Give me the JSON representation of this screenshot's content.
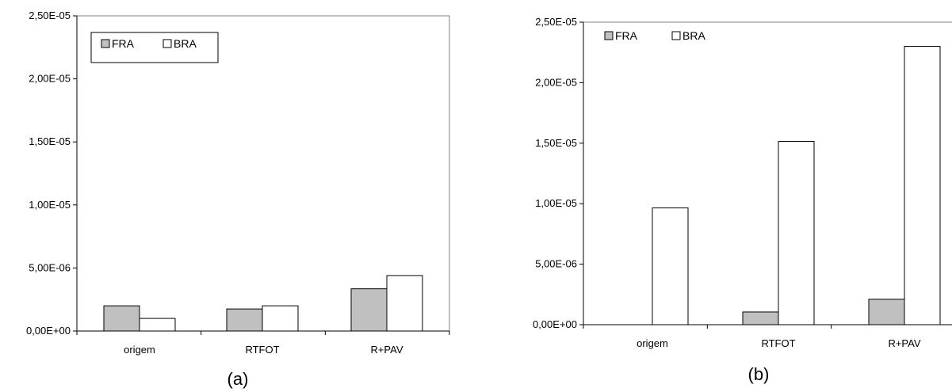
{
  "chart_data": [
    {
      "type": "bar",
      "caption": "(a)",
      "categories": [
        "origem",
        "RTFOT",
        "R+PAV"
      ],
      "series": [
        {
          "name": "FRA",
          "color": "#c0c0c0",
          "values": [
            2e-06,
            1.75e-06,
            3.35e-06
          ]
        },
        {
          "name": "BRA",
          "color": "#ffffff",
          "values": [
            1e-06,
            2e-06,
            4.4e-06
          ]
        }
      ],
      "ylim": [
        0,
        2.5e-05
      ],
      "yticks": [
        0,
        5e-06,
        1e-05,
        1.5e-05,
        2e-05,
        2.5e-05
      ],
      "ytick_labels": [
        "0,00E+00",
        "5,00E-06",
        "1,00E-05",
        "1,50E-05",
        "2,00E-05",
        "2,50E-05"
      ],
      "legend": "top-left, boxed",
      "grid": false
    },
    {
      "type": "bar",
      "caption": "(b)",
      "categories": [
        "origem",
        "RTFOT",
        "R+PAV"
      ],
      "series": [
        {
          "name": "FRA",
          "color": "#c0c0c0",
          "values": [
            0,
            1.05e-06,
            2.1e-06
          ]
        },
        {
          "name": "BRA",
          "color": "#ffffff",
          "values": [
            9.65e-06,
            1.515e-05,
            2.3e-05
          ]
        }
      ],
      "ylim": [
        0,
        2.5e-05
      ],
      "yticks": [
        0,
        5e-06,
        1e-05,
        1.5e-05,
        2e-05,
        2.5e-05
      ],
      "ytick_labels": [
        "0,00E+00",
        "5,00E-06",
        "1,00E-05",
        "1,50E-05",
        "2,00E-05",
        "2,50E-05"
      ],
      "legend": "top-left",
      "grid": "top line only"
    }
  ]
}
